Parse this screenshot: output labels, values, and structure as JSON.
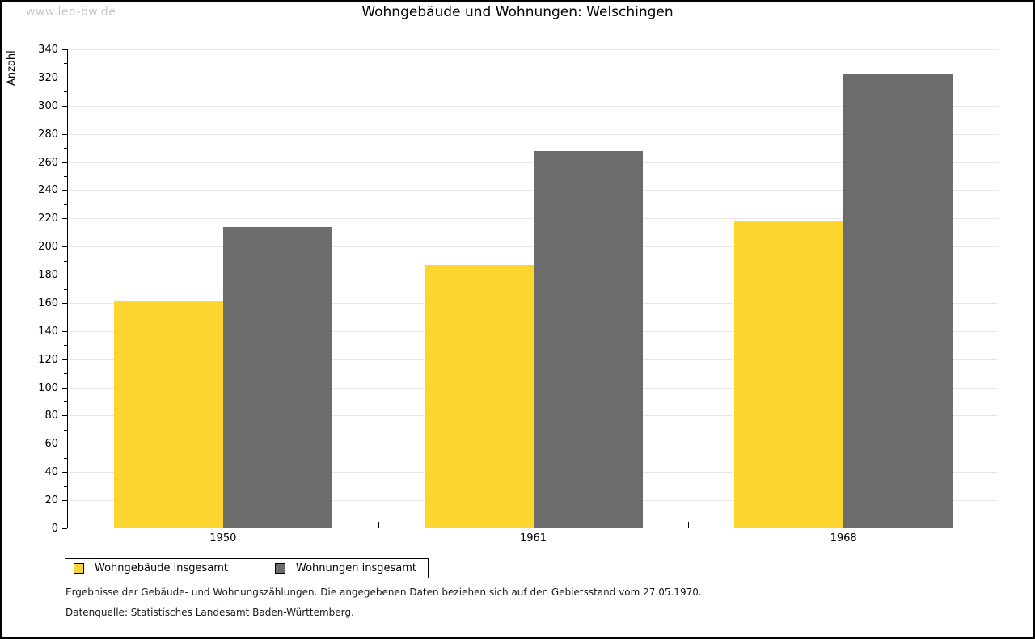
{
  "page": {
    "watermark": "www.leo-bw.de",
    "footnote_line1": "Ergebnisse der Gebäude- und Wohnungszählungen. Die angegebenen Daten beziehen sich auf den Gebietsstand vom 27.05.1970.",
    "footnote_line2": "Datenquelle: Statistisches Landesamt Baden-Württemberg."
  },
  "chart_data": {
    "type": "bar",
    "title": "Wohngebäude und Wohnungen: Welschingen",
    "xlabel": "",
    "ylabel": "Anzahl",
    "categories": [
      "1950",
      "1961",
      "1968"
    ],
    "series": [
      {
        "name": "Wohngebäude insgesamt",
        "color": "#fcd52f",
        "values": [
          161,
          187,
          218
        ]
      },
      {
        "name": "Wohnungen insgesamt",
        "color": "#6c6c6c",
        "values": [
          214,
          268,
          322
        ]
      }
    ],
    "ylim": [
      0,
      340
    ],
    "ytick_major_step": 20,
    "ytick_minor_step": 10,
    "grid": true,
    "legend_position": "bottom-left",
    "colors": {
      "axis": "#000000",
      "gridline": "#e7e7e7",
      "watermark": "#c9c9c9",
      "background": "#ffffff"
    }
  }
}
